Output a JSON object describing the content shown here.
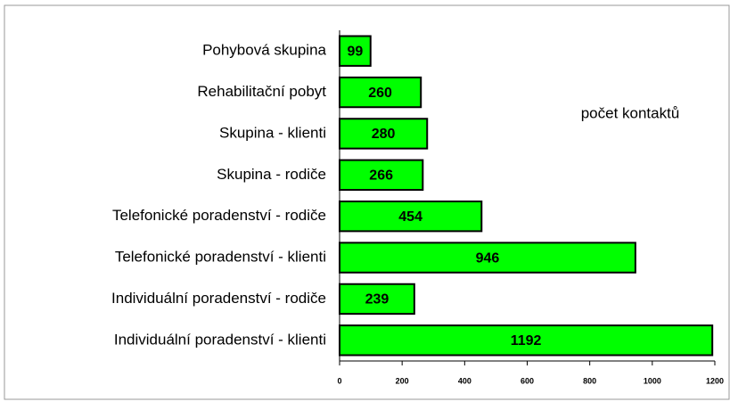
{
  "chart_data": {
    "type": "hbar",
    "categories": [
      "Pohybová skupina",
      "Rehabilitační pobyt",
      "Skupina - klienti",
      "Skupina - rodiče",
      "Telefonické poradenství - rodiče",
      "Telefonické poradenství - klienti",
      "Individuální poradenství - rodiče",
      "Individuální poradenství - klienti"
    ],
    "values": [
      99,
      260,
      280,
      266,
      454,
      946,
      239,
      1192
    ],
    "color": "#00ff00",
    "xlim": [
      0,
      1200
    ],
    "xticks": [
      0,
      200,
      400,
      600,
      800,
      1000,
      1200
    ],
    "annotation": "počet kontaktů"
  }
}
